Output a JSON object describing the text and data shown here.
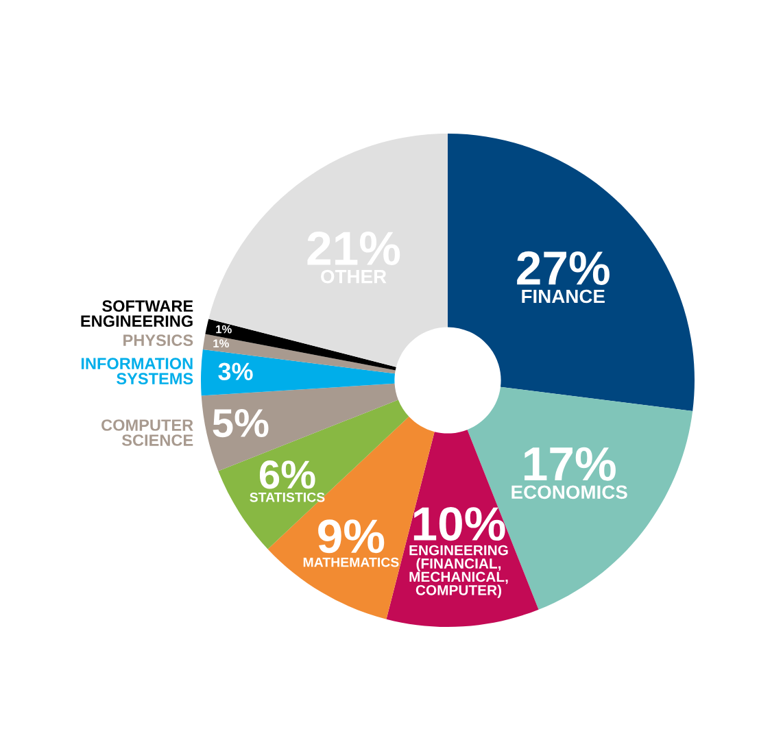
{
  "chart_data": {
    "type": "donut",
    "categories": [
      "FINANCE",
      "ECONOMICS",
      "ENGINEERING\n(FINANCIAL,\nMECHANICAL,\nCOMPUTER)",
      "MATHEMATICS",
      "STATISTICS",
      "COMPUTER\nSCIENCE",
      "INFORMATION\nSYSTEMS",
      "PHYSICS",
      "SOFTWARE\nENGINEERING",
      "OTHER"
    ],
    "values": [
      27,
      17,
      10,
      9,
      6,
      5,
      3,
      1,
      1,
      21
    ],
    "colors": [
      "#00467f",
      "#80c5b9",
      "#c30a55",
      "#f28b32",
      "#88b843",
      "#a89a8f",
      "#00aeea",
      "#a89a8f",
      "#000000",
      "#e0e0e0"
    ],
    "value_labels": [
      "27%",
      "17%",
      "10%",
      "9%",
      "6%",
      "5%",
      "3%",
      "1%",
      "1%",
      "21%"
    ]
  }
}
